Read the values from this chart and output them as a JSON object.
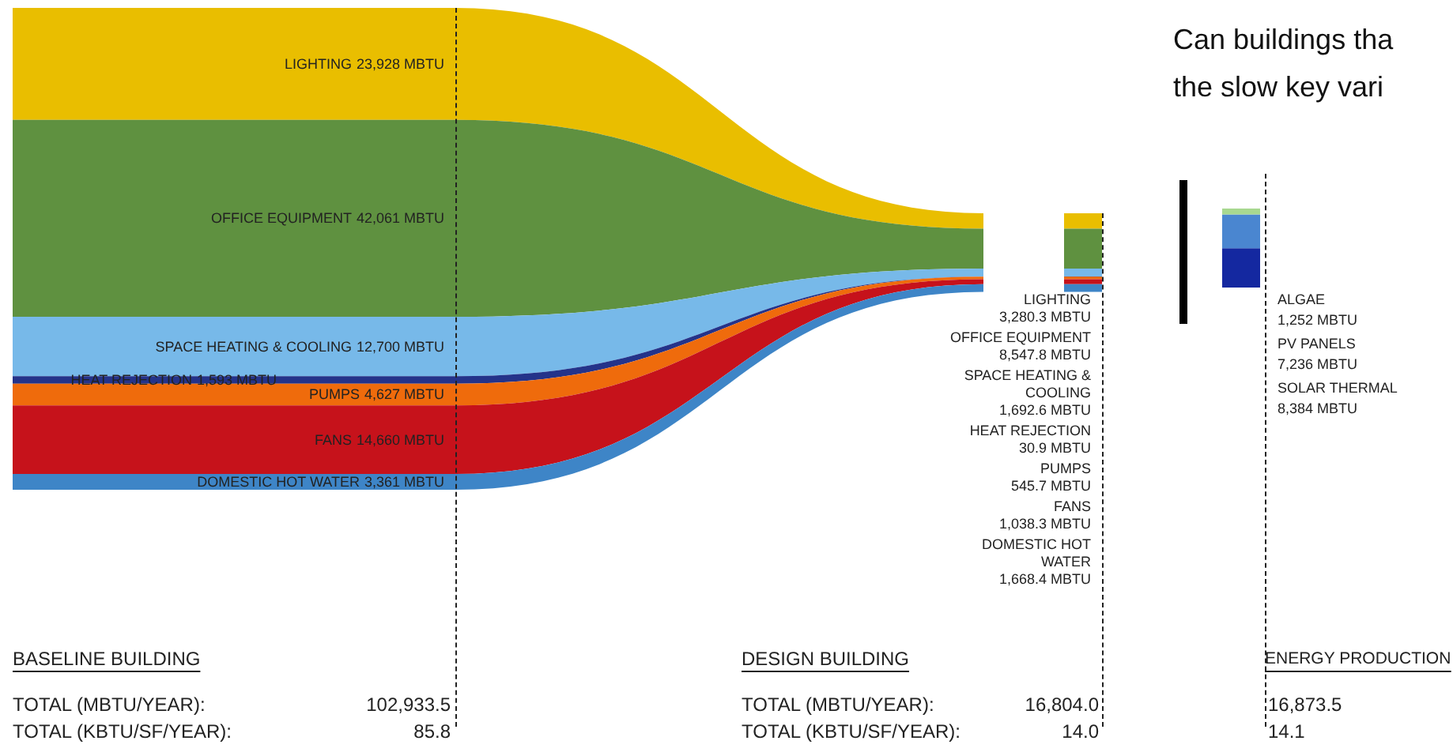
{
  "chart_data": [
    {
      "type": "other",
      "title": "Can buildings tha",
      "subtitle": "the slow key vari",
      "categories": [
        "LIGHTING",
        "OFFICE EQUIPMENT",
        "SPACE HEATING & COOLING",
        "HEAT REJECTION",
        "PUMPS",
        "FANS",
        "DOMESTIC HOT WATER"
      ],
      "series": [
        {
          "colors": [
            "#e9be00",
            "#5f9140",
            "#77b9e9",
            "#24338a",
            "#ef6b0c",
            "#c6121b",
            "#3e85c7"
          ],
          "values": [
            23928,
            42061,
            12700,
            1593,
            4627,
            14660,
            3361
          ],
          "value_labels": [
            "23,928 MBTU",
            "42,061 MBTU",
            "12,700 MBTU",
            "1,593 MBTU",
            "4,627 MBTU",
            "14,660 MBTU",
            "3,361 MBTU"
          ]
        },
        {
          "colors": [
            "#e9be00",
            "#5f9140",
            "#77b9e9",
            "#24338a",
            "#ef6b0c",
            "#c6121b",
            "#3e85c7"
          ],
          "values": [
            3280.3,
            8547.8,
            1692.6,
            30.9,
            545.7,
            1038.3,
            1668.4
          ],
          "value_labels": [
            "3,280.3 MBTU",
            "8,547.8 MBTU",
            "1,692.6 MBTU",
            "30.9 MBTU",
            "545.7 MBTU",
            "1,038.3 MBTU",
            "1,668.4 MBTU"
          ]
        }
      ],
      "annotations": [
        "BASELINE BUILDING",
        "TOTAL (MBTU/YEAR):",
        "102,933.5",
        "TOTAL (KBTU/SF/YEAR):",
        "85.8",
        "DESIGN BUILDING",
        "TOTAL (MBTU/YEAR):",
        "16,804.0",
        "TOTAL (KBTU/SF/YEAR):",
        "14.0"
      ]
    },
    {
      "type": "other",
      "title": "ENERGY PRODUCTION",
      "categories": [
        "ALGAE",
        "PV PANELS",
        "SOLAR THERMAL"
      ],
      "values": [
        1252,
        7236,
        8384
      ],
      "value_labels": [
        "1,252 MBTU",
        "7,236 MBTU",
        "8,384 MBTU"
      ],
      "colors": [
        "#a8d890",
        "#4a86d0",
        "#1428a0"
      ],
      "annotations": [
        "16,873.5",
        "14.1"
      ]
    }
  ]
}
